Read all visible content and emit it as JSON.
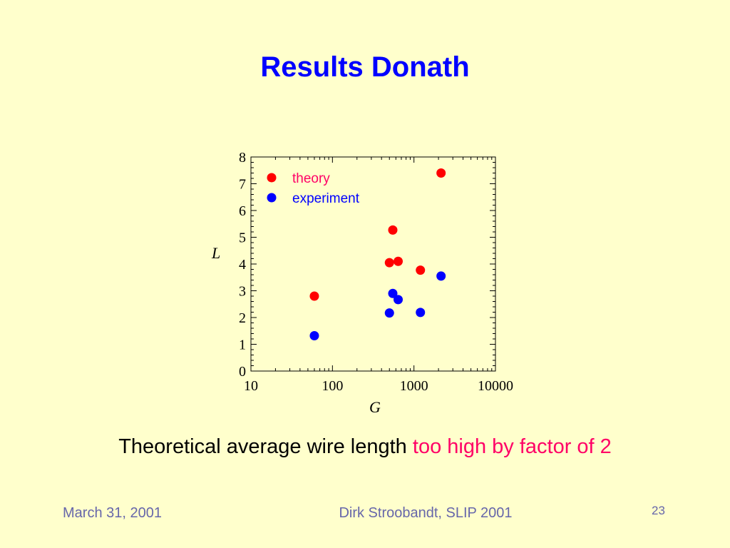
{
  "slide": {
    "title": "Results Donath",
    "caption_main": "Theoretical average wire length",
    "caption_highlight": "too high by factor of 2",
    "footer_date": "March 31, 2001",
    "footer_author": "Dirk Stroobandt, SLIP 2001",
    "page_number": "23"
  },
  "colors": {
    "background": "#FFFFCC",
    "title": "#0000FF",
    "highlight": "#FF0066",
    "footer": "#6666AA"
  },
  "chart_data": {
    "type": "scatter",
    "xlabel": "G",
    "ylabel": "L",
    "x_scale": "log",
    "xlim": [
      10,
      10000
    ],
    "ylim": [
      0,
      8
    ],
    "x_ticks": [
      "10",
      "100",
      "1000",
      "10000"
    ],
    "x_tick_values": [
      10,
      100,
      1000,
      10000
    ],
    "y_ticks": [
      "0",
      "1",
      "2",
      "3",
      "4",
      "5",
      "6",
      "7",
      "8"
    ],
    "y_tick_values": [
      0,
      1,
      2,
      3,
      4,
      5,
      6,
      7,
      8
    ],
    "legend_placement": "top-left",
    "grid": false,
    "series": [
      {
        "name": "theory",
        "color": "#FF0000",
        "label_color": "#FF0066",
        "points": [
          [
            60,
            2.8
          ],
          [
            500,
            4.05
          ],
          [
            550,
            5.27
          ],
          [
            640,
            4.1
          ],
          [
            1200,
            3.77
          ],
          [
            2150,
            7.4
          ]
        ]
      },
      {
        "name": "experiment",
        "color": "#0000FF",
        "label_color": "#0000FF",
        "points": [
          [
            60,
            1.32
          ],
          [
            500,
            2.17
          ],
          [
            550,
            2.9
          ],
          [
            640,
            2.67
          ],
          [
            1200,
            2.19
          ],
          [
            2150,
            3.55
          ]
        ]
      }
    ]
  }
}
